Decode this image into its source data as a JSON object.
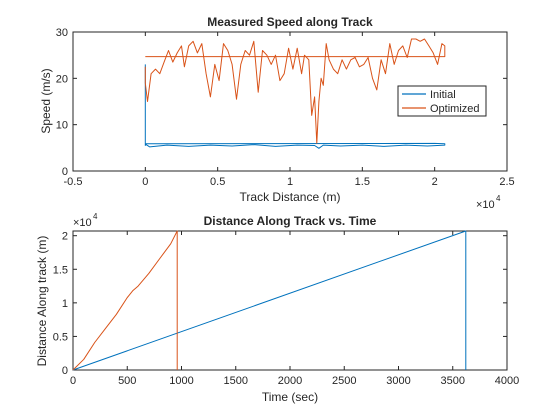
{
  "chart_data": [
    {
      "type": "line",
      "title": "Measured Speed along Track",
      "xlabel": "Track Distance (m)",
      "ylabel": "Speed (m/s)",
      "xlim": [
        -5000,
        25000
      ],
      "ylim": [
        0,
        30
      ],
      "x_exponent_label": "×10^4",
      "x_ticks": [
        -5000,
        0,
        5000,
        10000,
        15000,
        20000,
        25000
      ],
      "x_tick_labels": [
        "-0.5",
        "0",
        "0.5",
        "1",
        "1.5",
        "2",
        "2.5"
      ],
      "y_ticks": [
        0,
        10,
        20,
        30
      ],
      "y_tick_labels": [
        "0",
        "10",
        "20",
        "30"
      ],
      "legend": "inside-right",
      "series": [
        {
          "name": "Initial",
          "color": "#0072BD",
          "x": [
            0,
            0,
            0,
            300,
            1500,
            3000,
            4500,
            6000,
            7500,
            9000,
            10500,
            11700,
            12000,
            12300,
            13500,
            15000,
            16500,
            18000,
            19500,
            20700,
            20700,
            20000,
            0
          ],
          "y": [
            23,
            5.5,
            5.8,
            5.2,
            5.6,
            5.3,
            5.6,
            5.4,
            5.7,
            5.3,
            5.6,
            5.5,
            4.9,
            5.6,
            5.4,
            5.6,
            5.3,
            5.6,
            5.4,
            5.6,
            5.9,
            5.95,
            5.9
          ]
        },
        {
          "name": "Optimized",
          "color": "#D95319",
          "x": [
            0,
            0,
            150,
            400,
            700,
            1000,
            1300,
            1600,
            1900,
            2200,
            2500,
            2700,
            3000,
            3300,
            3600,
            3900,
            4200,
            4500,
            4800,
            5100,
            5400,
            5700,
            6000,
            6300,
            6600,
            6900,
            7200,
            7500,
            7800,
            8100,
            8400,
            8700,
            9000,
            9300,
            9600,
            9900,
            10200,
            10500,
            10800,
            11000,
            11300,
            11500,
            11700,
            11850,
            12000,
            12150,
            12300,
            12500,
            12700,
            13000,
            13300,
            13600,
            13900,
            14200,
            14500,
            14800,
            15100,
            15400,
            15700,
            16000,
            16300,
            16600,
            16900,
            17200,
            17500,
            17800,
            18100,
            18400,
            18700,
            19000,
            19300,
            19600,
            19900,
            20200,
            20500,
            20700,
            20700,
            20000,
            0,
            0
          ],
          "y": [
            22.5,
            19,
            15,
            21,
            22,
            21,
            23.5,
            26,
            23.5,
            25.5,
            27,
            22.5,
            27,
            28,
            25.5,
            27.5,
            21,
            16,
            23,
            19.5,
            27.5,
            26,
            23,
            15.5,
            23,
            26,
            25,
            28,
            17,
            26,
            25,
            23,
            25,
            19.5,
            21,
            26.5,
            22,
            26.5,
            21,
            25,
            24,
            12,
            16,
            6,
            15,
            20,
            18.5,
            27.5,
            24,
            22,
            21,
            24,
            22,
            24,
            24.5,
            22.5,
            23,
            24.5,
            20,
            17.5,
            24,
            21,
            27.5,
            23,
            26,
            27,
            24.5,
            28.5,
            28.5,
            28,
            28.5,
            27,
            25.5,
            23,
            27.5,
            27,
            24.7,
            24.7,
            24.7,
            24.7
          ]
        }
      ]
    },
    {
      "type": "line",
      "title": "Distance Along Track vs. Time",
      "xlabel": "Time (sec)",
      "ylabel": "Distance Along track (m)",
      "xlim": [
        0,
        4000
      ],
      "ylim": [
        0,
        20700
      ],
      "y_exponent_label": "×10^4",
      "x_ticks": [
        0,
        500,
        1000,
        1500,
        2000,
        2500,
        3000,
        3500,
        4000
      ],
      "x_tick_labels": [
        "0",
        "500",
        "1000",
        "1500",
        "2000",
        "2500",
        "3000",
        "3500",
        "4000"
      ],
      "y_ticks": [
        0,
        5000,
        10000,
        15000,
        20000
      ],
      "y_tick_labels": [
        "0",
        "0.5",
        "1",
        "1.5",
        "2"
      ],
      "grid": false,
      "series": [
        {
          "color": "#0072BD",
          "x": [
            0,
            3620,
            3620,
            3620
          ],
          "y": [
            0,
            20700,
            20700,
            0
          ]
        },
        {
          "color": "#D95319",
          "x": [
            0,
            100,
            200,
            300,
            400,
            500,
            550,
            600,
            700,
            800,
            900,
            960,
            960,
            960
          ],
          "y": [
            0,
            1600,
            4100,
            6200,
            8300,
            10800,
            11800,
            12500,
            14400,
            16600,
            18800,
            20700,
            20700,
            0
          ]
        }
      ]
    }
  ]
}
